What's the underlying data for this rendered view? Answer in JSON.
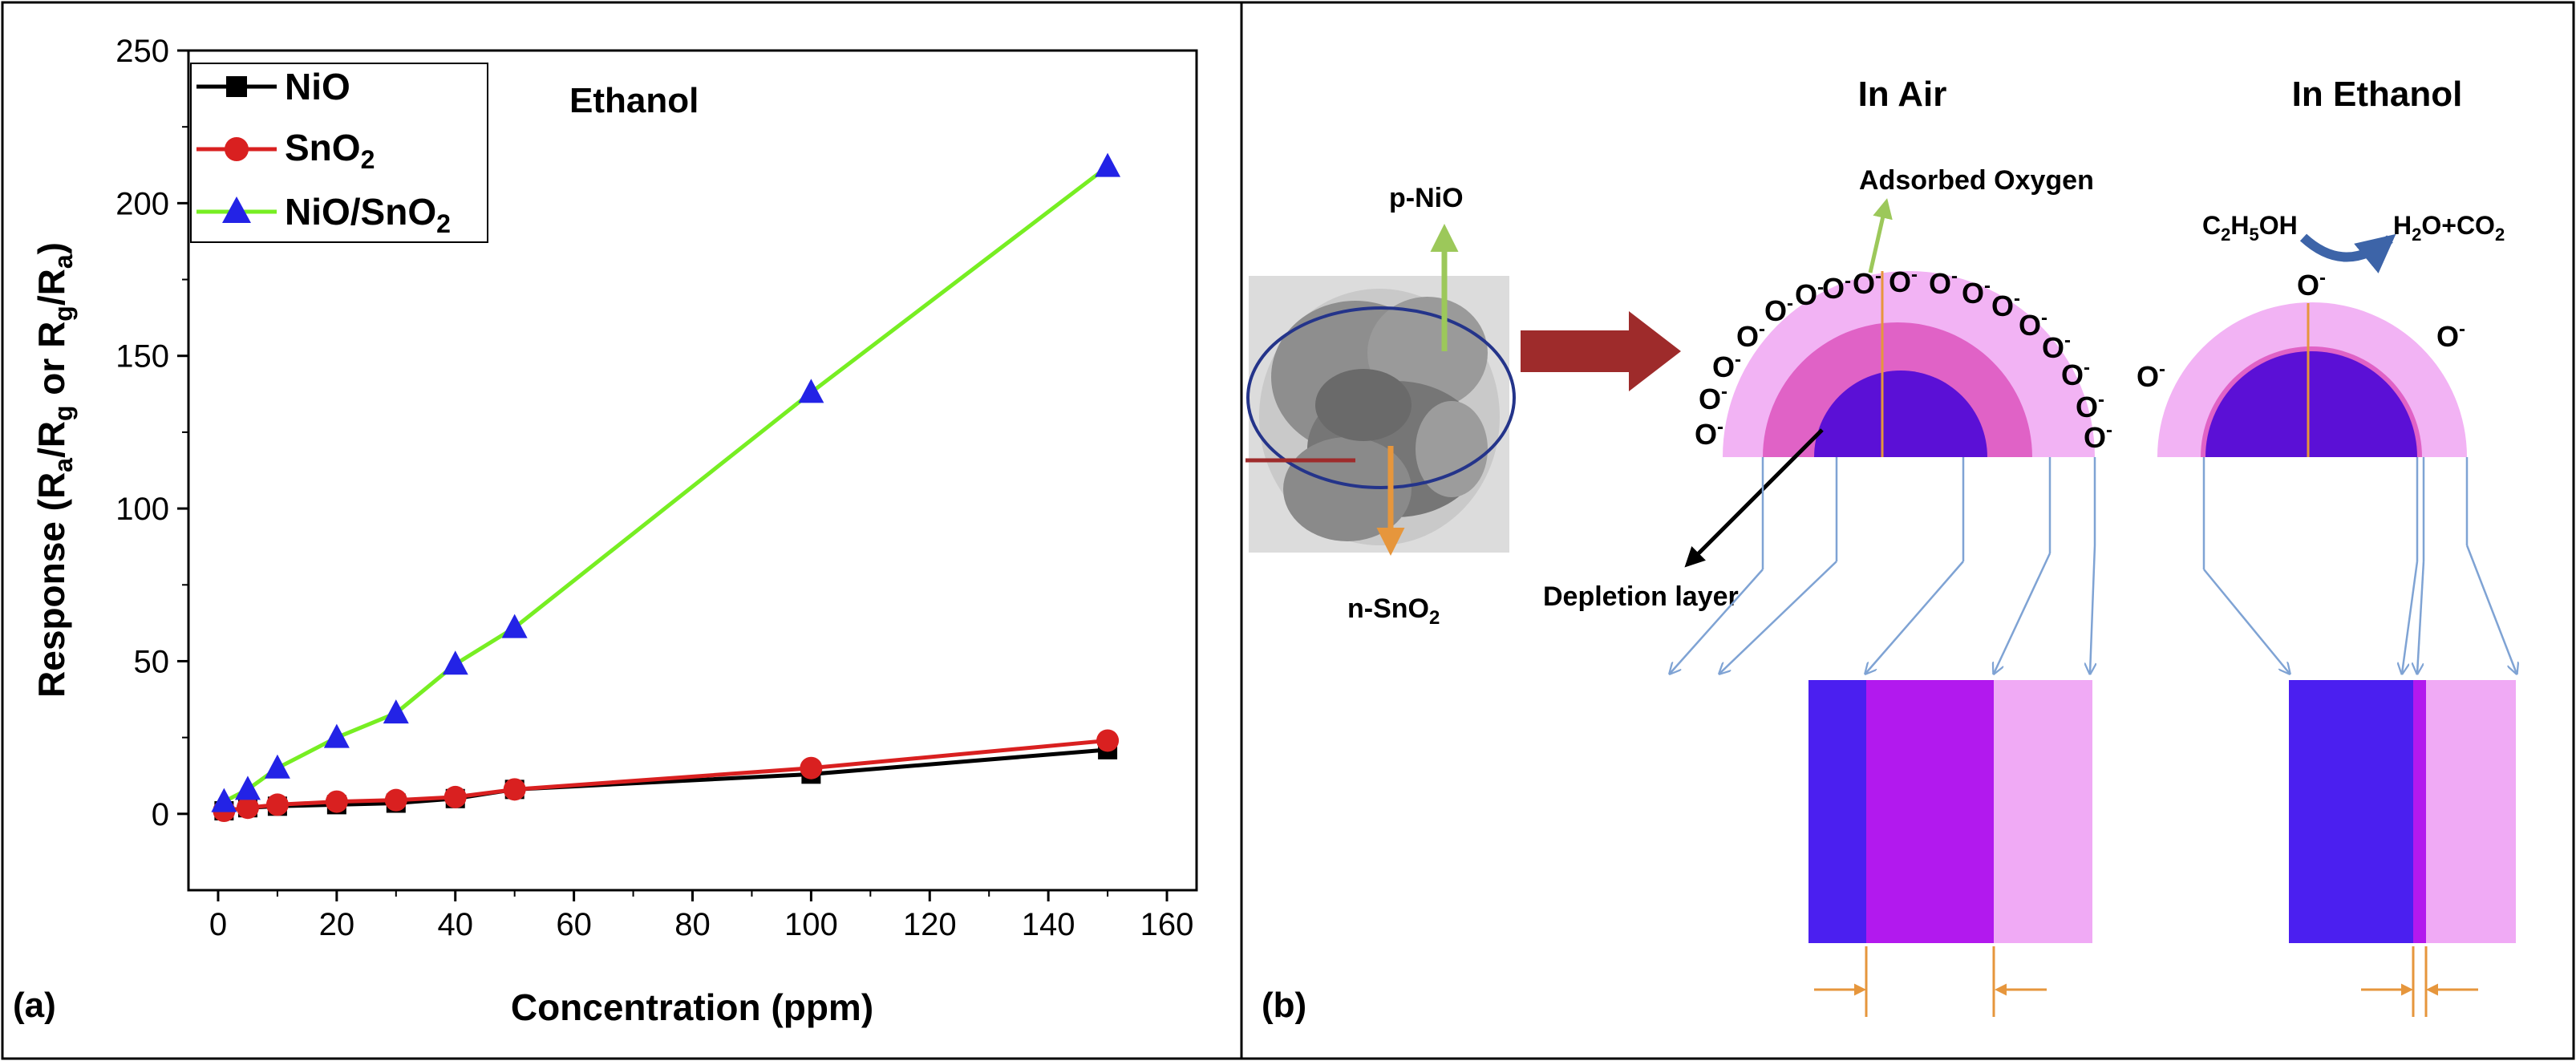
{
  "chart_data": [
    {
      "type": "line",
      "panel_label": "(a)",
      "title": "Ethanol",
      "xlabel": "Concentration (ppm)",
      "ylabel_parts": {
        "lead": "Response (R",
        "s1": "a",
        "m1": "/R",
        "s2": "g",
        "m2": " or R",
        "s3": "g",
        "m3": "/R",
        "s4": "a",
        "end": ")"
      },
      "xlim": [
        -5,
        165
      ],
      "ylim": [
        -25,
        250
      ],
      "xticks": [
        0,
        20,
        40,
        60,
        80,
        100,
        120,
        140,
        160
      ],
      "yticks": [
        0,
        50,
        100,
        150,
        200,
        250
      ],
      "legend_position": "top-left",
      "series": [
        {
          "name": "NiO",
          "marker": "square",
          "color": "#000000",
          "line_color": "#000000",
          "x": [
            1,
            5,
            10,
            20,
            30,
            40,
            50,
            100,
            150
          ],
          "y": [
            1,
            2,
            2.5,
            3,
            3.5,
            5,
            8,
            13,
            21
          ]
        },
        {
          "name": "SnO2",
          "name_base": "SnO",
          "name_sub": "2",
          "marker": "circle",
          "color": "#d92020",
          "line_color": "#d92020",
          "x": [
            1,
            5,
            10,
            20,
            30,
            40,
            50,
            100,
            150
          ],
          "y": [
            1,
            2,
            3,
            4,
            4.5,
            5.5,
            8,
            15,
            24
          ]
        },
        {
          "name": "NiO/SnO2",
          "name_base": "NiO/SnO",
          "name_sub": "2",
          "marker": "triangle",
          "color": "#2323e6",
          "line_color": "#77ee22",
          "x": [
            1,
            5,
            10,
            20,
            30,
            40,
            50,
            100,
            150
          ],
          "y": [
            4,
            8,
            15,
            25,
            33,
            49,
            61,
            138,
            212
          ]
        }
      ]
    },
    {
      "type": "diagram",
      "panel_label": "(b)",
      "labels": {
        "in_air": "In Air",
        "in_ethanol": "In Ethanol",
        "adsorbed_oxygen": "Adsorbed Oxygen",
        "p_nio": "p-NiO",
        "n_sno2_base": "n-SnO",
        "n_sno2_sub": "2",
        "depletion_layer": "Depletion layer",
        "oxygen_ion": "O",
        "oxygen_charge": "-",
        "reactant": {
          "p1": "C",
          "s1": "2",
          "p2": "H",
          "s2": "5",
          "p3": "OH"
        },
        "product": {
          "p1": "H",
          "s1": "2",
          "p2": "O+CO",
          "s2": "2"
        }
      },
      "colors": {
        "core": "#5b10d6",
        "depletion": "#e062c6",
        "shell": "#f2b3f4",
        "bar_core": "#4b1ff0",
        "bar_mid": "#b219ee",
        "bar_outer": "#f0aaf5",
        "arrow_red": "#9e2b2b",
        "arrow_green": "#9cc85a",
        "arrow_orange": "#e6963c",
        "arrow_blue": "#7fa3d4",
        "arrow_curve": "#3d64a8"
      }
    }
  ]
}
